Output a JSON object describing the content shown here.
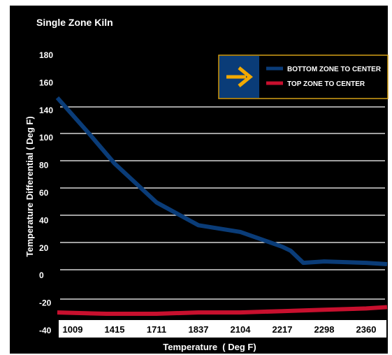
{
  "chart_data": {
    "type": "line",
    "title": "Single Zone Kiln",
    "xlabel": "Temperature  ( Deg F)",
    "ylabel": "Temperature Differential  ( Deg F)",
    "categories": [
      "1009",
      "1415",
      "1711",
      "1837",
      "2104",
      "2217",
      "2298",
      "2360"
    ],
    "ylim": [
      -40,
      180
    ],
    "yticks": [
      "180",
      "160",
      "140",
      "100",
      "80",
      "60",
      "40",
      "20",
      "0",
      "-20",
      "-40"
    ],
    "grid": true,
    "legend": "top-right",
    "series": [
      {
        "name": "BOTTOM ZONE TO CENTER",
        "color": "#0a3c78",
        "x": [
          0,
          0.4,
          1,
          2,
          3,
          4,
          5,
          5.2,
          5.5,
          6,
          7,
          7.5
        ],
        "values": [
          149,
          122,
          100,
          71,
          54,
          49,
          38,
          35,
          26,
          27,
          26,
          25
        ]
      },
      {
        "name": "TOP ZONE TO CENTER",
        "color": "#c8102e",
        "x": [
          0,
          0.8,
          2,
          3,
          4,
          5,
          6,
          7,
          7.5
        ],
        "values": [
          -11,
          -12,
          -12,
          -11,
          -11,
          -10,
          -9,
          -8,
          -7
        ]
      }
    ]
  },
  "legend_arrow": {
    "icon": "right-arrow-icon",
    "color": "#f2a900",
    "background": "#0a3c78",
    "border": "#d4a017"
  }
}
